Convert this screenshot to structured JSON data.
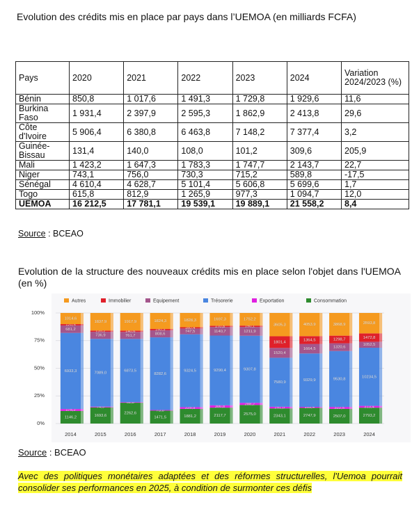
{
  "header": {
    "title": "Evolution des crédits mis en place par pays dans l’UEMOA (en milliards FCFA)"
  },
  "table": {
    "columns": [
      "Pays",
      "2020",
      "2021",
      "2022",
      "2023",
      "2024",
      "Variation 2024/2023 (%)"
    ],
    "rows": [
      [
        "Bénin",
        "850,8",
        "1 017,6",
        "1 491,3",
        "1 729,8",
        "1 929,6",
        "11,6"
      ],
      [
        "Burkina Faso",
        "1 931,4",
        "2 397,9",
        "2 595,3",
        "1 862,9",
        "2 413,8",
        "29,6"
      ],
      [
        "Côte d'Ivoire",
        "5 906,4",
        "6 380,8",
        "6 463,8",
        "7 148,2",
        "7 377,4",
        "3,2"
      ],
      [
        "Guinée-Bissau",
        "131,4",
        "140,0",
        "108,0",
        "101,2",
        "309,6",
        "205,9"
      ],
      [
        "Mali",
        "1 423,2",
        "1 647,3",
        "1 783,3",
        "1 747,7",
        "2 143,7",
        "22,7"
      ],
      [
        "Niger",
        "743,1",
        "756,0",
        "730,3",
        "715,2",
        "589,8",
        "-17,5"
      ],
      [
        "Sénégal",
        "4 610,4",
        "4 628,7",
        "5 101,4",
        "5 606,8",
        "5 699,6",
        "1,7"
      ],
      [
        "Togo",
        "615,8",
        "812,9",
        "1 265,9",
        "977,3",
        "1 094,7",
        "12,0"
      ],
      [
        "UEMOA",
        "16 212,5",
        "17 781,1",
        "19 539,1",
        "19 889,1",
        "21 558,2",
        "8,4"
      ]
    ]
  },
  "source_1": {
    "label": "Source",
    "text": ": BCEAO"
  },
  "section_title": "Evolution de la structure des nouveaux crédits mis en place selon l'objet dans l'UEMOA (en %)",
  "chart_data": {
    "type": "bar",
    "stacked": "percent",
    "categories": [
      "2014",
      "2015",
      "2016",
      "2017",
      "2018",
      "2019",
      "2020",
      "2021",
      "2022",
      "2023",
      "2024"
    ],
    "series": [
      {
        "name": "Autres",
        "color": "#f59a1f",
        "values": [
          1014.6,
          1837.9,
          1917.9,
          1824.3,
          1828.3,
          1697.3,
          1752.2,
          3605.3,
          4053.9,
          3868.9,
          3593.8
        ],
        "value_labels": [
          "1014,6",
          "1837,9",
          "1917,9",
          "1824,3",
          "1828,3",
          "1697,3",
          "1752,2",
          "3605,3",
          "4053,9",
          "3868,9",
          "3593,8"
        ]
      },
      {
        "name": "Immobilier",
        "color": "#e0202a",
        "values": [
          120.5,
          135.2,
          140.6,
          150.3,
          160.4,
          170.8,
          190.1,
          1801.4,
          1364.5,
          1298.7,
          1472.8
        ],
        "value_labels": [
          "120,5",
          "135,2",
          "140,6",
          "150,3",
          "160,4",
          "170,8",
          "190,1",
          "1801,4",
          "1364,5",
          "1298,7",
          "1472,8"
        ]
      },
      {
        "name": "Equipement",
        "color": "#a4568c",
        "values": [
          681.2,
          736.9,
          761.7,
          808.6,
          747.5,
          1140.7,
          1211.9,
          1520.4,
          1664.5,
          1320.6,
          1052.5
        ],
        "value_labels": [
          "681,2",
          "736,9",
          "761,7",
          "808,6",
          "747,5",
          "1140,7",
          "1211,9",
          "1520,4",
          "1664,5",
          "1320,6",
          "1052,5"
        ]
      },
      {
        "name": "Trésorerie",
        "color": "#4a86e0",
        "values": [
          6933.3,
          7089.0,
          6873.5,
          8282.6,
          9324.5,
          9290.4,
          9307.8,
          7580.9,
          9329.9,
          9530.8,
          10234.5
        ],
        "value_labels": [
          "6933,3",
          "7089,0",
          "6873,5",
          "8282,6",
          "9324,5",
          "9290,4",
          "9307,8",
          "7580,9",
          "9329,9",
          "9530,8",
          "10234,5"
        ]
      },
      {
        "name": "Exportation",
        "color": "#e020e0",
        "values": [
          175.2,
          74.9,
          62.8,
          73.8,
          225.9,
          306.8,
          288.2,
          251.0,
          169.4,
          322.5,
          313.4
        ],
        "value_labels": [
          "175,2",
          "74,9",
          "62,8",
          "73,8",
          "225,9",
          "306,8",
          "288,2",
          "251,0",
          "169,4",
          "322,5",
          "313,4"
        ]
      },
      {
        "name": "Consommation",
        "color": "#2e8b2e",
        "values": [
          1146.2,
          1693.6,
          2262.6,
          1471.5,
          1881.2,
          2117.7,
          2575.0,
          2343.1,
          2747.9,
          2507.0,
          2793.2
        ],
        "value_labels": [
          "1146,2",
          "1693,6",
          "2262,6",
          "1471,5",
          "1881,2",
          "2117,7",
          "2575,0",
          "2343,1",
          "2747,9",
          "2507,0",
          "2793,2"
        ]
      }
    ],
    "ylim": [
      0,
      100
    ],
    "yticks": [
      {
        "value": 0,
        "label": "0%"
      },
      {
        "value": 25,
        "label": "25%"
      },
      {
        "value": 50,
        "label": "50%"
      },
      {
        "value": 75,
        "label": "75%"
      },
      {
        "value": 100,
        "label": "100%"
      }
    ],
    "grid": true,
    "legend": "top"
  },
  "source_2": {
    "label": "Source",
    "text": ": BCEAO"
  },
  "conclusion": "Avec des politiques monétaires adaptées et des réformes structurelles, l'Uemoa pourrait consolider ses performances en 2025, à condition de surmonter ces défis"
}
